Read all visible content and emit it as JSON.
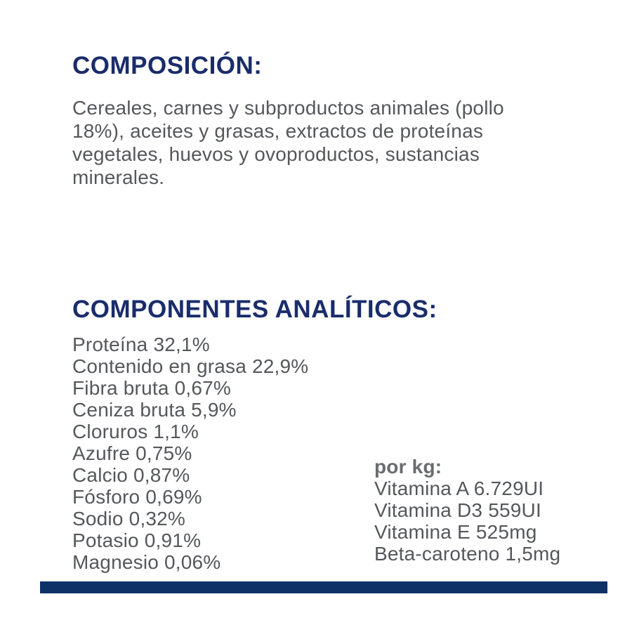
{
  "colors": {
    "heading_blue": "#1a2c6b",
    "body_gray": "#55575b",
    "per_kg_label_gray": "#6a6b6e",
    "footer_bar_navy": "#0e3168",
    "background": "#ffffff"
  },
  "composition": {
    "title": "COMPOSICIÓN:",
    "full_text": "Cereales, carnes y subproductos animales (pollo 18%), aceites y grasas, extractos de proteínas vegetales, huevos y ovoproductos, sustancias minerales.",
    "lines": [
      "Cereales, carnes y subproductos animales (pollo",
      "18%), aceites y grasas, extractos de proteínas",
      "vegetales, huevos y ovoproductos, sustancias",
      "minerales."
    ]
  },
  "analytical_components": {
    "title": "COMPONENTES ANALÍTICOS:",
    "items": [
      {
        "name": "Proteína",
        "value": "32,1%"
      },
      {
        "name": "Contenido en grasa",
        "value": "22,9%"
      },
      {
        "name": "Fibra bruta",
        "value": "0,67%"
      },
      {
        "name": "Ceniza bruta",
        "value": "5,9%"
      },
      {
        "name": "Cloruros",
        "value": "1,1%"
      },
      {
        "name": "Azufre",
        "value": "0,75%"
      },
      {
        "name": "Calcio",
        "value": "0,87%"
      },
      {
        "name": "Fósforo",
        "value": "0,69%"
      },
      {
        "name": "Sodio",
        "value": "0,32%"
      },
      {
        "name": "Potasio",
        "value": "0,91%"
      },
      {
        "name": "Magnesio",
        "value": "0,06%"
      }
    ]
  },
  "per_kg": {
    "label": "por kg:",
    "items": [
      {
        "name": "Vitamina A",
        "value": "6.729UI"
      },
      {
        "name": "Vitamina D3",
        "value": "559UI"
      },
      {
        "name": "Vitamina E",
        "value": "525mg"
      },
      {
        "name": "Beta-caroteno",
        "value": "1,5mg"
      }
    ]
  }
}
